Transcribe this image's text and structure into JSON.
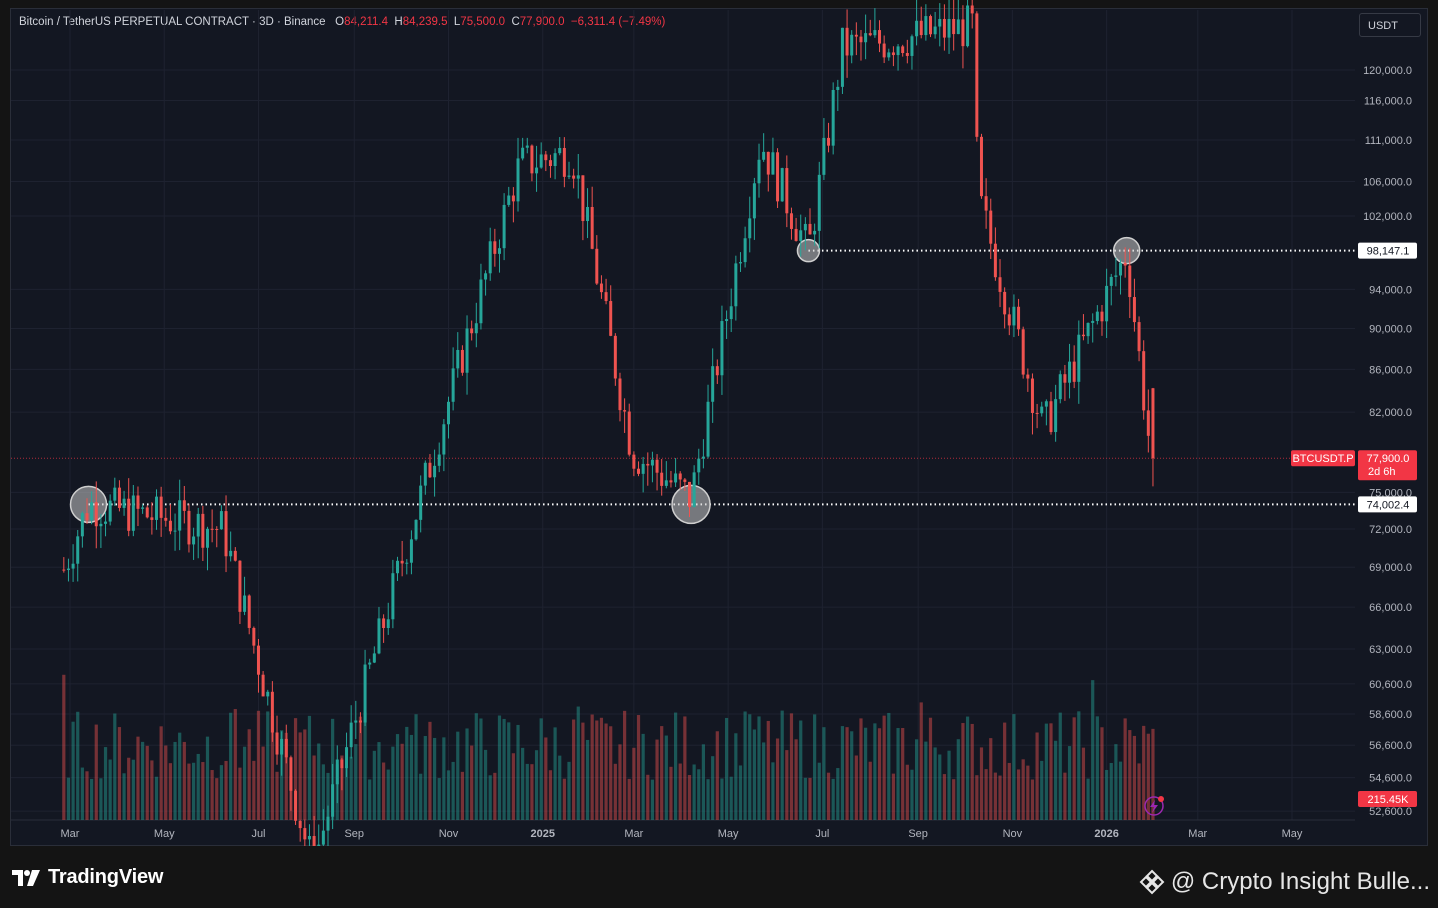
{
  "legend": {
    "symbol": "Bitcoin / TetherUS PERPETUAL CONTRACT · 3D · Binance",
    "o_label": "O",
    "o_value": "84,211.4",
    "h_label": "H",
    "h_value": "84,239.5",
    "l_label": "L",
    "l_value": "75,500.0",
    "c_label": "C",
    "c_value": "77,900.0",
    "change": "−6,311.4 (−7.49%)"
  },
  "currency_button": "USDT",
  "footer": {
    "logo_text": "TradingView",
    "watermark": "@ Crypto Insight Bulle..."
  },
  "colors": {
    "up": "#26a69a",
    "down": "#ef5350",
    "background": "#131722",
    "price_tag": "#f23645",
    "grid": "#1e2230"
  },
  "chart_data": {
    "type": "candlestick",
    "title": "Bitcoin / TetherUS PERPETUAL CONTRACT · 3D · Binance",
    "x_tick_labels": [
      "Mar",
      "May",
      "Jul",
      "Sep",
      "Nov",
      "2025",
      "Mar",
      "May",
      "Jul",
      "Sep",
      "Nov",
      "2026",
      "Mar",
      "May"
    ],
    "y_tick_labels": [
      120000,
      116000,
      111000,
      106000,
      102000,
      94000,
      90000,
      86000,
      82000,
      75000,
      72000,
      69000,
      66000,
      63000,
      60600,
      58600,
      56600,
      54600,
      52600
    ],
    "y_scale": "log",
    "y_range": [
      52000,
      127000
    ],
    "current_price": {
      "symbol": "BTCUSDT.P",
      "price": "77,900.0",
      "countdown": "2d 6h",
      "value": 77900
    },
    "horizontal_levels": [
      {
        "label": "98,147.1",
        "value": 98147.1
      },
      {
        "label": "74,002.4",
        "value": 74002.4
      }
    ],
    "volume_label": "215.45K",
    "key_points": [
      {
        "date": "2024-03-13",
        "price": 74000
      },
      {
        "date": "2024-06-08",
        "price": 72000
      },
      {
        "date": "2024-08-05",
        "price": 49500
      },
      {
        "date": "2024-11-11",
        "price": 88000
      },
      {
        "date": "2024-12-17",
        "price": 108000
      },
      {
        "date": "2025-01-20",
        "price": 109500
      },
      {
        "date": "2025-02-28",
        "price": 78500
      },
      {
        "date": "2025-04-07",
        "price": 74500
      },
      {
        "date": "2025-05-22",
        "price": 111000
      },
      {
        "date": "2025-06-22",
        "price": 98100
      },
      {
        "date": "2025-07-14",
        "price": 123000
      },
      {
        "date": "2025-08-14",
        "price": 124000
      },
      {
        "date": "2025-10-06",
        "price": 126000
      },
      {
        "date": "2025-10-10",
        "price": 104000
      },
      {
        "date": "2025-11-21",
        "price": 80500
      },
      {
        "date": "2026-01-14",
        "price": 97900
      },
      {
        "date": "2026-02-01",
        "price": 75500
      }
    ],
    "last_candle": {
      "open": 84211.4,
      "high": 84239.5,
      "low": 75500.0,
      "close": 77900.0,
      "change": -6311.4,
      "change_pct": -7.49
    }
  }
}
